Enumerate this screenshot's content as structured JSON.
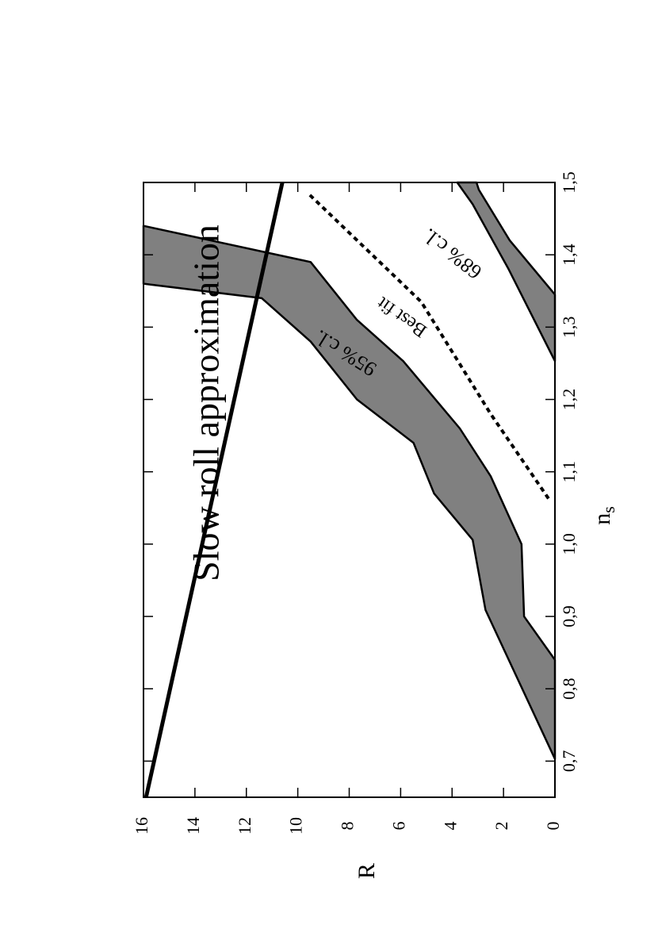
{
  "chart_data": {
    "type": "region",
    "xlabel": "n",
    "xlabel_sub": "s",
    "ylabel": "R",
    "xlim": [
      0.65,
      1.5
    ],
    "ylim": [
      0,
      16
    ],
    "xticks": [
      {
        "value": 0.7,
        "label": "0,7"
      },
      {
        "value": 0.8,
        "label": "0,8"
      },
      {
        "value": 0.9,
        "label": "0,9"
      },
      {
        "value": 1.0,
        "label": "1,0"
      },
      {
        "value": 1.1,
        "label": "1,1"
      },
      {
        "value": 1.2,
        "label": "1,2"
      },
      {
        "value": 1.3,
        "label": "1,3"
      },
      {
        "value": 1.4,
        "label": "1,4"
      },
      {
        "value": 1.5,
        "label": "1,5"
      }
    ],
    "yticks": [
      0,
      2,
      4,
      6,
      8,
      10,
      12,
      14,
      16
    ],
    "lines": [
      {
        "label": "Slow roll approximation",
        "style": "solid",
        "color": "#000000",
        "x": [
          0.65,
          1.5
        ],
        "y": [
          15.9,
          10.6
        ]
      },
      {
        "label": "Best fit",
        "style": "dotted",
        "color": "#000000",
        "x": [
          1.063,
          1.18,
          1.335,
          1.41,
          1.485
        ],
        "y": [
          0.25,
          2.5,
          5.2,
          7.4,
          9.6
        ]
      }
    ],
    "bands": [
      {
        "label": "95% c.l.",
        "color": "#808080",
        "x": [
          0.703,
          0.909,
          1.006,
          1.07,
          1.14,
          1.2,
          1.28,
          1.34,
          1.36,
          1.44,
          1.39,
          1.31,
          1.253,
          1.16,
          1.094,
          1.0,
          0.9,
          0.84
        ],
        "y": [
          0,
          2.7,
          3.2,
          4.7,
          5.5,
          7.7,
          9.5,
          11.4,
          16,
          16,
          9.5,
          7.7,
          5.9,
          3.7,
          2.5,
          1.3,
          1.2,
          0
        ]
      },
      {
        "label": "68% c.l.",
        "color": "#808080",
        "x": [
          1.253,
          1.38,
          1.47,
          1.5,
          1.5,
          1.49,
          1.42,
          1.345
        ],
        "y": [
          0,
          1.8,
          3.2,
          3.8,
          3.05,
          2.96,
          1.76,
          0
        ]
      }
    ]
  }
}
